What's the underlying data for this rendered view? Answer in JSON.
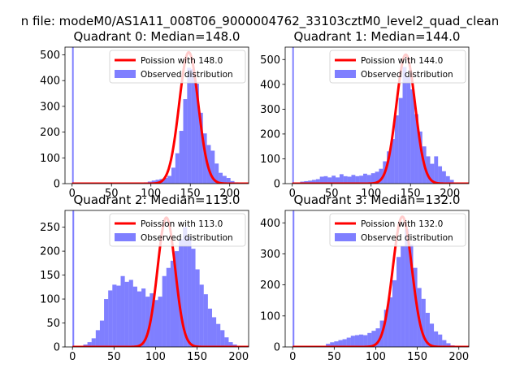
{
  "figure_title": "n file: modeM0/AS1A11_008T06_9000004762_33103cztM0_level2_quad_clean",
  "chart_data": [
    {
      "type": "bar",
      "title": "Quadrant 0: Median=148.0",
      "xlim": [
        -9,
        224
      ],
      "ylim": [
        0,
        530
      ],
      "xticks": [
        0,
        50,
        100,
        150,
        200
      ],
      "yticks": [
        0,
        100,
        200,
        300,
        400,
        500
      ],
      "legend": [
        "Poission with 148.0",
        "Observed distribution"
      ],
      "legend_position": "upper right",
      "poisson_mean": 148.0,
      "poisson_peak": 510,
      "hist": {
        "bins": [
          0,
          2,
          91,
          96,
          101,
          106,
          111,
          116,
          121,
          126,
          131,
          136,
          141,
          146,
          151,
          156,
          161,
          166,
          171,
          176,
          181,
          186,
          191,
          196,
          201,
          206,
          211,
          216
        ],
        "counts": [
          540,
          0,
          5,
          8,
          12,
          15,
          18,
          22,
          30,
          62,
          118,
          205,
          328,
          450,
          445,
          388,
          275,
          195,
          150,
          128,
          78,
          42,
          30,
          22,
          10,
          5,
          3
        ]
      }
    },
    {
      "type": "bar",
      "title": "Quadrant 1: Median=144.0",
      "xlim": [
        -9,
        224
      ],
      "ylim": [
        0,
        550
      ],
      "xticks": [
        0,
        50,
        100,
        150,
        200
      ],
      "yticks": [
        0,
        100,
        200,
        300,
        400,
        500
      ],
      "legend": [
        "Poission with 144.0",
        "Observed distribution"
      ],
      "legend_position": "upper right",
      "poisson_mean": 144.0,
      "poisson_peak": 520,
      "hist": {
        "bins": [
          0,
          2,
          5,
          10,
          15,
          20,
          25,
          30,
          35,
          40,
          45,
          50,
          55,
          60,
          65,
          70,
          75,
          80,
          85,
          90,
          95,
          100,
          105,
          110,
          115,
          120,
          125,
          130,
          135,
          140,
          145,
          150,
          155,
          160,
          165,
          170,
          175,
          180,
          185,
          190,
          195,
          200,
          205,
          210
        ],
        "counts": [
          550,
          0,
          0,
          8,
          10,
          12,
          15,
          18,
          28,
          30,
          25,
          32,
          25,
          38,
          30,
          28,
          35,
          30,
          32,
          40,
          35,
          42,
          48,
          60,
          90,
          130,
          180,
          275,
          345,
          470,
          430,
          380,
          280,
          210,
          150,
          110,
          80,
          110,
          70,
          50,
          30,
          15,
          5
        ]
      }
    },
    {
      "type": "bar",
      "title": "Quadrant 2: Median=113.0",
      "xlim": [
        -9,
        212
      ],
      "ylim": [
        0,
        285
      ],
      "xticks": [
        0,
        50,
        100,
        150,
        200
      ],
      "yticks": [
        0,
        50,
        100,
        150,
        200,
        250
      ],
      "legend": [
        "Poission with 113.0",
        "Observed distribution"
      ],
      "legend_position": "upper right",
      "poisson_mean": 113.0,
      "poisson_peak": 270,
      "hist": {
        "bins": [
          0,
          2,
          8,
          13,
          18,
          23,
          28,
          33,
          38,
          43,
          48,
          53,
          58,
          63,
          68,
          73,
          78,
          83,
          88,
          93,
          98,
          103,
          108,
          113,
          118,
          123,
          128,
          133,
          138,
          143,
          148,
          153,
          158,
          163,
          168,
          173,
          178,
          183,
          188,
          193,
          198
        ],
        "counts": [
          285,
          0,
          0,
          5,
          10,
          18,
          35,
          55,
          100,
          118,
          130,
          128,
          148,
          136,
          140,
          126,
          116,
          122,
          105,
          112,
          98,
          105,
          148,
          165,
          180,
          200,
          225,
          250,
          230,
          205,
          162,
          130,
          110,
          80,
          62,
          48,
          35,
          20,
          10,
          5
        ]
      }
    },
    {
      "type": "bar",
      "title": "Quadrant 3: Median=132.0",
      "xlim": [
        -9,
        212
      ],
      "ylim": [
        0,
        440
      ],
      "xticks": [
        0,
        50,
        100,
        150,
        200
      ],
      "yticks": [
        0,
        100,
        200,
        300,
        400
      ],
      "legend": [
        "Poission with 132.0",
        "Observed distribution"
      ],
      "legend_position": "upper right",
      "poisson_mean": 132.0,
      "poisson_peak": 420,
      "hist": {
        "bins": [
          0,
          2,
          40,
          45,
          50,
          55,
          60,
          65,
          70,
          75,
          80,
          85,
          90,
          95,
          100,
          105,
          110,
          115,
          120,
          125,
          130,
          135,
          140,
          145,
          150,
          155,
          160,
          165,
          170,
          175,
          180,
          185,
          190,
          195,
          200
        ],
        "counts": [
          440,
          0,
          10,
          15,
          18,
          22,
          25,
          30,
          36,
          38,
          40,
          38,
          45,
          52,
          60,
          85,
          120,
          160,
          215,
          290,
          325,
          380,
          330,
          255,
          190,
          155,
          110,
          75,
          50,
          40,
          22,
          12,
          5,
          2
        ]
      }
    }
  ]
}
